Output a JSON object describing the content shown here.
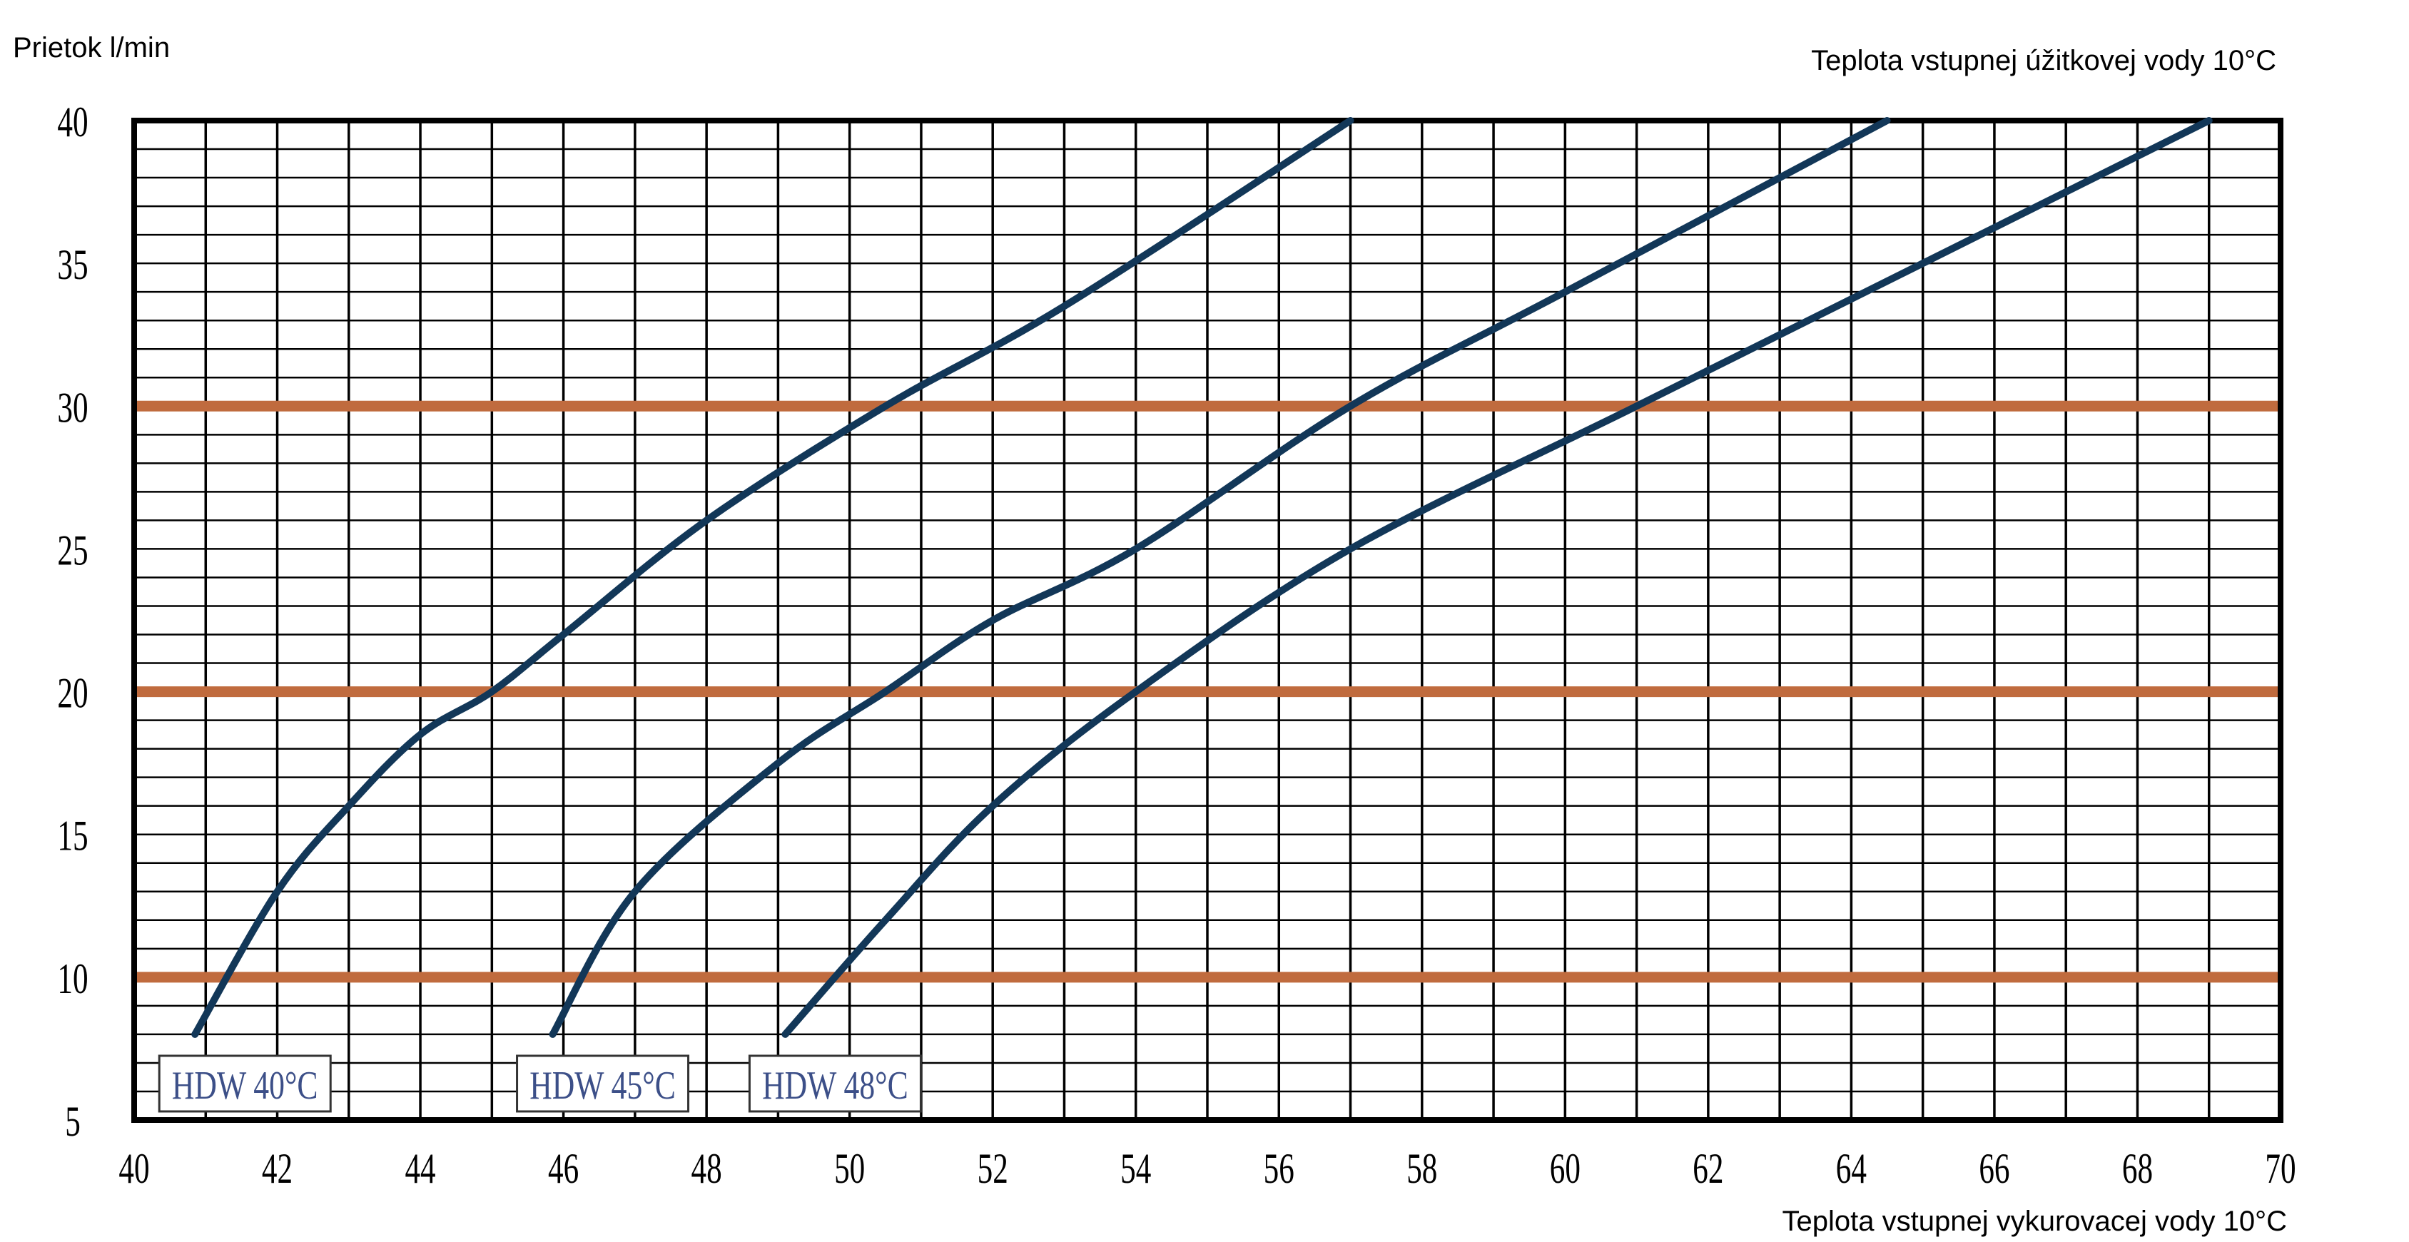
{
  "chart_data": {
    "type": "line",
    "ylabel": "Prietok l/min",
    "top_label": "Teplota vstupnej úžitkovej vody 10°C",
    "xlabel": "Teplota vstupnej vykurovacej vody 10°C",
    "xlim": [
      40,
      70
    ],
    "ylim": [
      5,
      40
    ],
    "xticks": [
      "40",
      "42",
      "44",
      "46",
      "48",
      "50",
      "52",
      "54",
      "56",
      "58",
      "60",
      "62",
      "64",
      "66",
      "68",
      "70"
    ],
    "yticks": [
      "5",
      "10",
      "15",
      "20",
      "25",
      "30",
      "35",
      "40"
    ],
    "grid": true,
    "grid_minor_x": 1,
    "grid_minor_y": 1,
    "reference_lines_y": [
      10,
      20,
      30
    ],
    "colors": {
      "curve": "#123758",
      "reference": "#c06b3e",
      "label": "#3c4f88"
    },
    "series": [
      {
        "name": "HDW 40°C",
        "x": [
          40.85,
          42.0,
          43.0,
          44.0,
          45.0,
          46.0,
          48.0,
          50.5,
          53.0,
          57.0
        ],
        "y": [
          8,
          13,
          16,
          18.5,
          20,
          22,
          26,
          30,
          33.5,
          40
        ]
      },
      {
        "name": "HDW 45°C",
        "x": [
          45.85,
          47.0,
          49.0,
          50.5,
          52.0,
          54.0,
          57.0,
          60.0,
          64.5
        ],
        "y": [
          8,
          13,
          17.5,
          20,
          22.5,
          25,
          30,
          34,
          40
        ]
      },
      {
        "name": "HDW 48°C",
        "x": [
          49.1,
          50.5,
          52.0,
          54.0,
          57.0,
          61.0,
          65.0,
          69.0
        ],
        "y": [
          8,
          12,
          16,
          20,
          25,
          30,
          35,
          40
        ]
      }
    ]
  }
}
